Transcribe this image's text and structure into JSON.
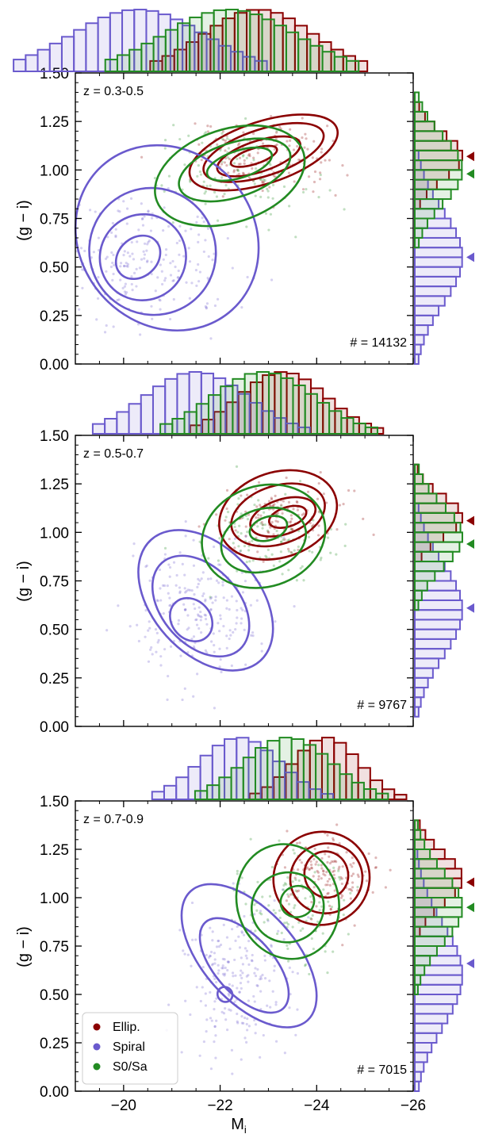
{
  "figure": {
    "xlabel_main": "M",
    "xlabel_sub": "i",
    "ylabel": "(g − i)",
    "xlim": [
      -19,
      -26
    ],
    "ylim": [
      0,
      1.5
    ],
    "x_ticks": [
      -20,
      -22,
      -24,
      -26
    ],
    "x_tick_labels": [
      "−20",
      "−22",
      "−24",
      "−26"
    ],
    "y_ticks": [
      0,
      0.25,
      0.5,
      0.75,
      1.0,
      1.25,
      1.5
    ],
    "y_tick_labels": [
      "0.00",
      "0.25",
      "0.50",
      "0.75",
      "1.00",
      "1.25",
      "1.50"
    ]
  },
  "legend": {
    "placement": "lower-left (bottom panel)",
    "items": [
      {
        "label": "Ellip.",
        "color": "#8b0000"
      },
      {
        "label": "Spiral",
        "color": "#6a5acd"
      },
      {
        "label": "S0/Sa",
        "color": "#228b22"
      }
    ]
  },
  "colors": {
    "ellip": "#8b0000",
    "spiral": "#6a5acd",
    "s0sa": "#228b22"
  },
  "chart_data": [
    {
      "type": "scatter",
      "z_label": "z = 0.3-0.5",
      "count_label": "# = 14132",
      "series": [
        {
          "name": "Ellip.",
          "color": "#8b0000",
          "center_x": -22.8,
          "center_y": 1.07,
          "spread_x": 0.75,
          "spread_y": 0.09,
          "contour_levels": [
            {
              "cx": -22.7,
              "cy": 1.07,
              "rx": 0.5,
              "ry": 0.04
            },
            {
              "cx": -22.8,
              "cy": 1.07,
              "rx": 0.9,
              "ry": 0.08
            },
            {
              "cx": -22.9,
              "cy": 1.09,
              "rx": 1.3,
              "ry": 0.12
            },
            {
              "cx": -22.9,
              "cy": 1.09,
              "rx": 1.6,
              "ry": 0.16
            }
          ],
          "median_color": 1.07
        },
        {
          "name": "Spiral",
          "color": "#6a5acd",
          "center_x": -20.3,
          "center_y": 0.55,
          "spread_x": 0.9,
          "spread_y": 0.18,
          "contour_levels": [
            {
              "cx": -20.3,
              "cy": 0.55,
              "rx": 0.5,
              "ry": 0.1
            },
            {
              "cx": -20.4,
              "cy": 0.55,
              "rx": 0.9,
              "ry": 0.22
            },
            {
              "cx": -20.6,
              "cy": 0.58,
              "rx": 1.3,
              "ry": 0.33
            },
            {
              "cx": -20.9,
              "cy": 0.65,
              "rx": 1.8,
              "ry": 0.5
            }
          ],
          "median_color": 0.55
        },
        {
          "name": "S0/Sa",
          "color": "#228b22",
          "center_x": -22.2,
          "center_y": 1.0,
          "spread_x": 0.9,
          "spread_y": 0.13,
          "contour_levels": [
            {
              "cx": -22.4,
              "cy": 1.03,
              "rx": 0.7,
              "ry": 0.07
            },
            {
              "cx": -22.3,
              "cy": 1.0,
              "rx": 1.2,
              "ry": 0.14
            },
            {
              "cx": -22.2,
              "cy": 0.97,
              "rx": 1.6,
              "ry": 0.24
            }
          ],
          "median_color": 0.98
        }
      ]
    },
    {
      "type": "scatter",
      "z_label": "z = 0.5-0.7",
      "count_label": "# = 9767",
      "series": [
        {
          "name": "Ellip.",
          "color": "#8b0000",
          "center_x": -23.3,
          "center_y": 1.08,
          "spread_x": 0.6,
          "spread_y": 0.08,
          "contour_levels": [
            {
              "cx": -23.4,
              "cy": 1.08,
              "rx": 0.4,
              "ry": 0.05
            },
            {
              "cx": -23.3,
              "cy": 1.08,
              "rx": 0.7,
              "ry": 0.09
            },
            {
              "cx": -23.2,
              "cy": 1.09,
              "rx": 1.0,
              "ry": 0.15
            },
            {
              "cx": -23.2,
              "cy": 1.09,
              "rx": 1.25,
              "ry": 0.22
            }
          ],
          "median_color": 1.06
        },
        {
          "name": "Spiral",
          "color": "#6a5acd",
          "center_x": -21.5,
          "center_y": 0.6,
          "spread_x": 0.7,
          "spread_y": 0.18,
          "contour_levels": [
            {
              "cx": -21.4,
              "cy": 0.55,
              "rx": 0.4,
              "ry": 0.12
            },
            {
              "cx": -21.6,
              "cy": 0.62,
              "rx": 0.8,
              "ry": 0.3
            },
            {
              "cx": -21.7,
              "cy": 0.65,
              "rx": 1.1,
              "ry": 0.42
            }
          ],
          "median_color": 0.61
        },
        {
          "name": "S0/Sa",
          "color": "#228b22",
          "center_x": -22.9,
          "center_y": 0.98,
          "spread_x": 0.7,
          "spread_y": 0.12,
          "contour_levels": [
            {
              "cx": -23.0,
              "cy": 1.02,
              "rx": 0.4,
              "ry": 0.06
            },
            {
              "cx": -22.9,
              "cy": 0.96,
              "rx": 0.9,
              "ry": 0.16
            },
            {
              "cx": -22.9,
              "cy": 0.98,
              "rx": 1.3,
              "ry": 0.26
            }
          ],
          "median_color": 0.94
        }
      ]
    },
    {
      "type": "scatter",
      "z_label": "z = 0.7-0.9",
      "count_label": "# = 7015",
      "series": [
        {
          "name": "Ellip.",
          "color": "#8b0000",
          "center_x": -24.2,
          "center_y": 1.1,
          "spread_x": 0.45,
          "spread_y": 0.1,
          "contour_levels": [
            {
              "cx": -24.2,
              "cy": 1.12,
              "rx": 0.45,
              "ry": 0.12
            },
            {
              "cx": -24.2,
              "cy": 1.1,
              "rx": 0.75,
              "ry": 0.18
            },
            {
              "cx": -24.1,
              "cy": 1.1,
              "rx": 1.0,
              "ry": 0.24
            }
          ],
          "median_color": 1.08
        },
        {
          "name": "Spiral",
          "color": "#6a5acd",
          "center_x": -22.4,
          "center_y": 0.6,
          "spread_x": 0.55,
          "spread_y": 0.2,
          "contour_levels": [
            {
              "cx": -22.1,
              "cy": 0.5,
              "rx": 0.15,
              "ry": 0.04
            },
            {
              "cx": -22.5,
              "cy": 0.65,
              "rx": 0.6,
              "ry": 0.3
            },
            {
              "cx": -22.6,
              "cy": 0.7,
              "rx": 0.95,
              "ry": 0.45
            }
          ],
          "median_color": 0.66
        },
        {
          "name": "S0/Sa",
          "color": "#228b22",
          "center_x": -23.4,
          "center_y": 0.95,
          "spread_x": 0.6,
          "spread_y": 0.14,
          "contour_levels": [
            {
              "cx": -23.6,
              "cy": 0.98,
              "rx": 0.35,
              "ry": 0.08
            },
            {
              "cx": -23.4,
              "cy": 0.95,
              "rx": 0.75,
              "ry": 0.18
            },
            {
              "cx": -23.4,
              "cy": 0.98,
              "rx": 1.05,
              "ry": 0.3
            }
          ],
          "median_color": 0.95
        }
      ]
    }
  ]
}
